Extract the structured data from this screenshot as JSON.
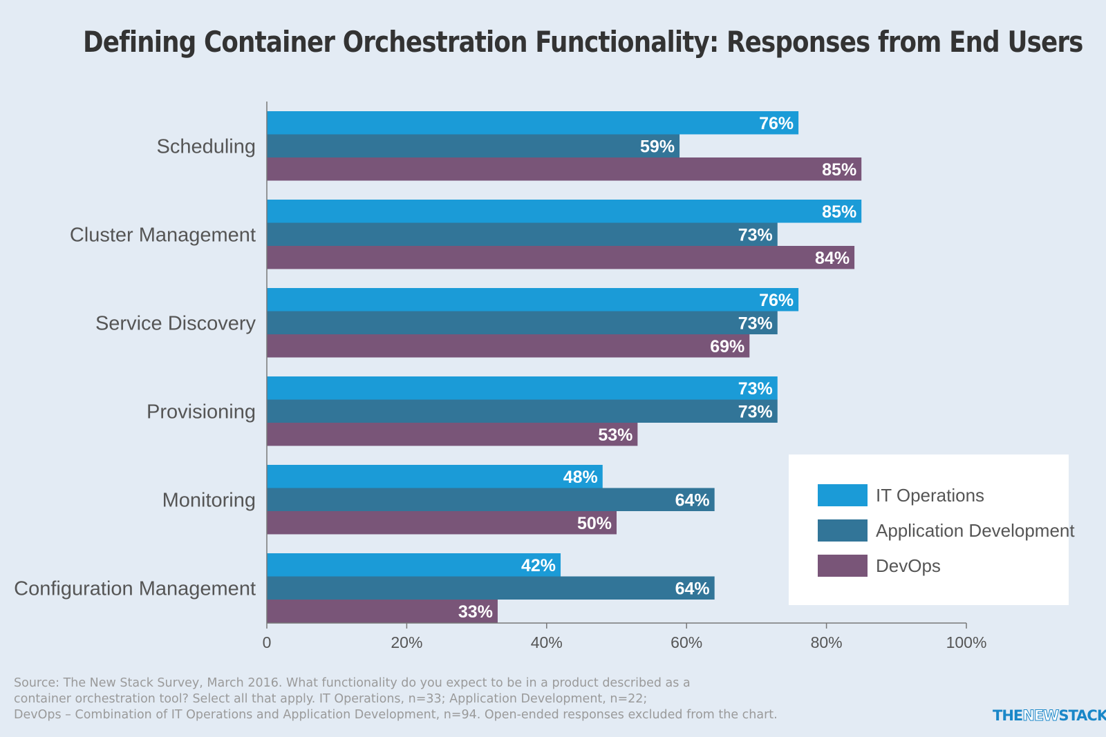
{
  "chart_data": {
    "type": "bar",
    "orientation": "horizontal",
    "title": "Defining Container Orchestration Functionality: Responses from End Users",
    "categories": [
      "Scheduling",
      "Cluster Management",
      "Service Discovery",
      "Provisioning",
      "Monitoring",
      "Configuration Management"
    ],
    "series": [
      {
        "name": "IT Operations",
        "color": "#1b9bd7",
        "values": [
          76,
          85,
          76,
          73,
          48,
          42
        ]
      },
      {
        "name": "Application Development",
        "color": "#327598",
        "values": [
          59,
          73,
          73,
          73,
          64,
          64
        ]
      },
      {
        "name": "DevOps",
        "color": "#795578",
        "values": [
          85,
          84,
          69,
          53,
          50,
          33
        ]
      }
    ],
    "value_labels": [
      [
        "76%",
        "59%",
        "85%"
      ],
      [
        "85%",
        "73%",
        "84%"
      ],
      [
        "76%",
        "73%",
        "69%"
      ],
      [
        "73%",
        "73%",
        "53%"
      ],
      [
        "48%",
        "64%",
        "50%"
      ],
      [
        "42%",
        "64%",
        "33%"
      ]
    ],
    "xlim": [
      0,
      100
    ],
    "xticks": [
      0,
      20,
      40,
      60,
      80,
      100
    ],
    "xtick_labels": [
      "0",
      "20%",
      "40%",
      "60%",
      "80%",
      "100%"
    ],
    "grid": false,
    "legend_position": "bottom-right"
  },
  "source": {
    "lines": [
      "Source: The New Stack Survey, March 2016. What functionality do you expect to be in a product described as a",
      "container orchestration tool? Select all that apply. IT Operations, n=33; Application Development, n=22;",
      "DevOps – Combination of IT Operations and Application Development, n=94. Open-ended responses excluded from the chart."
    ]
  },
  "brand": {
    "part1": "THE",
    "part2": "NEW",
    "part3": "STACK"
  }
}
